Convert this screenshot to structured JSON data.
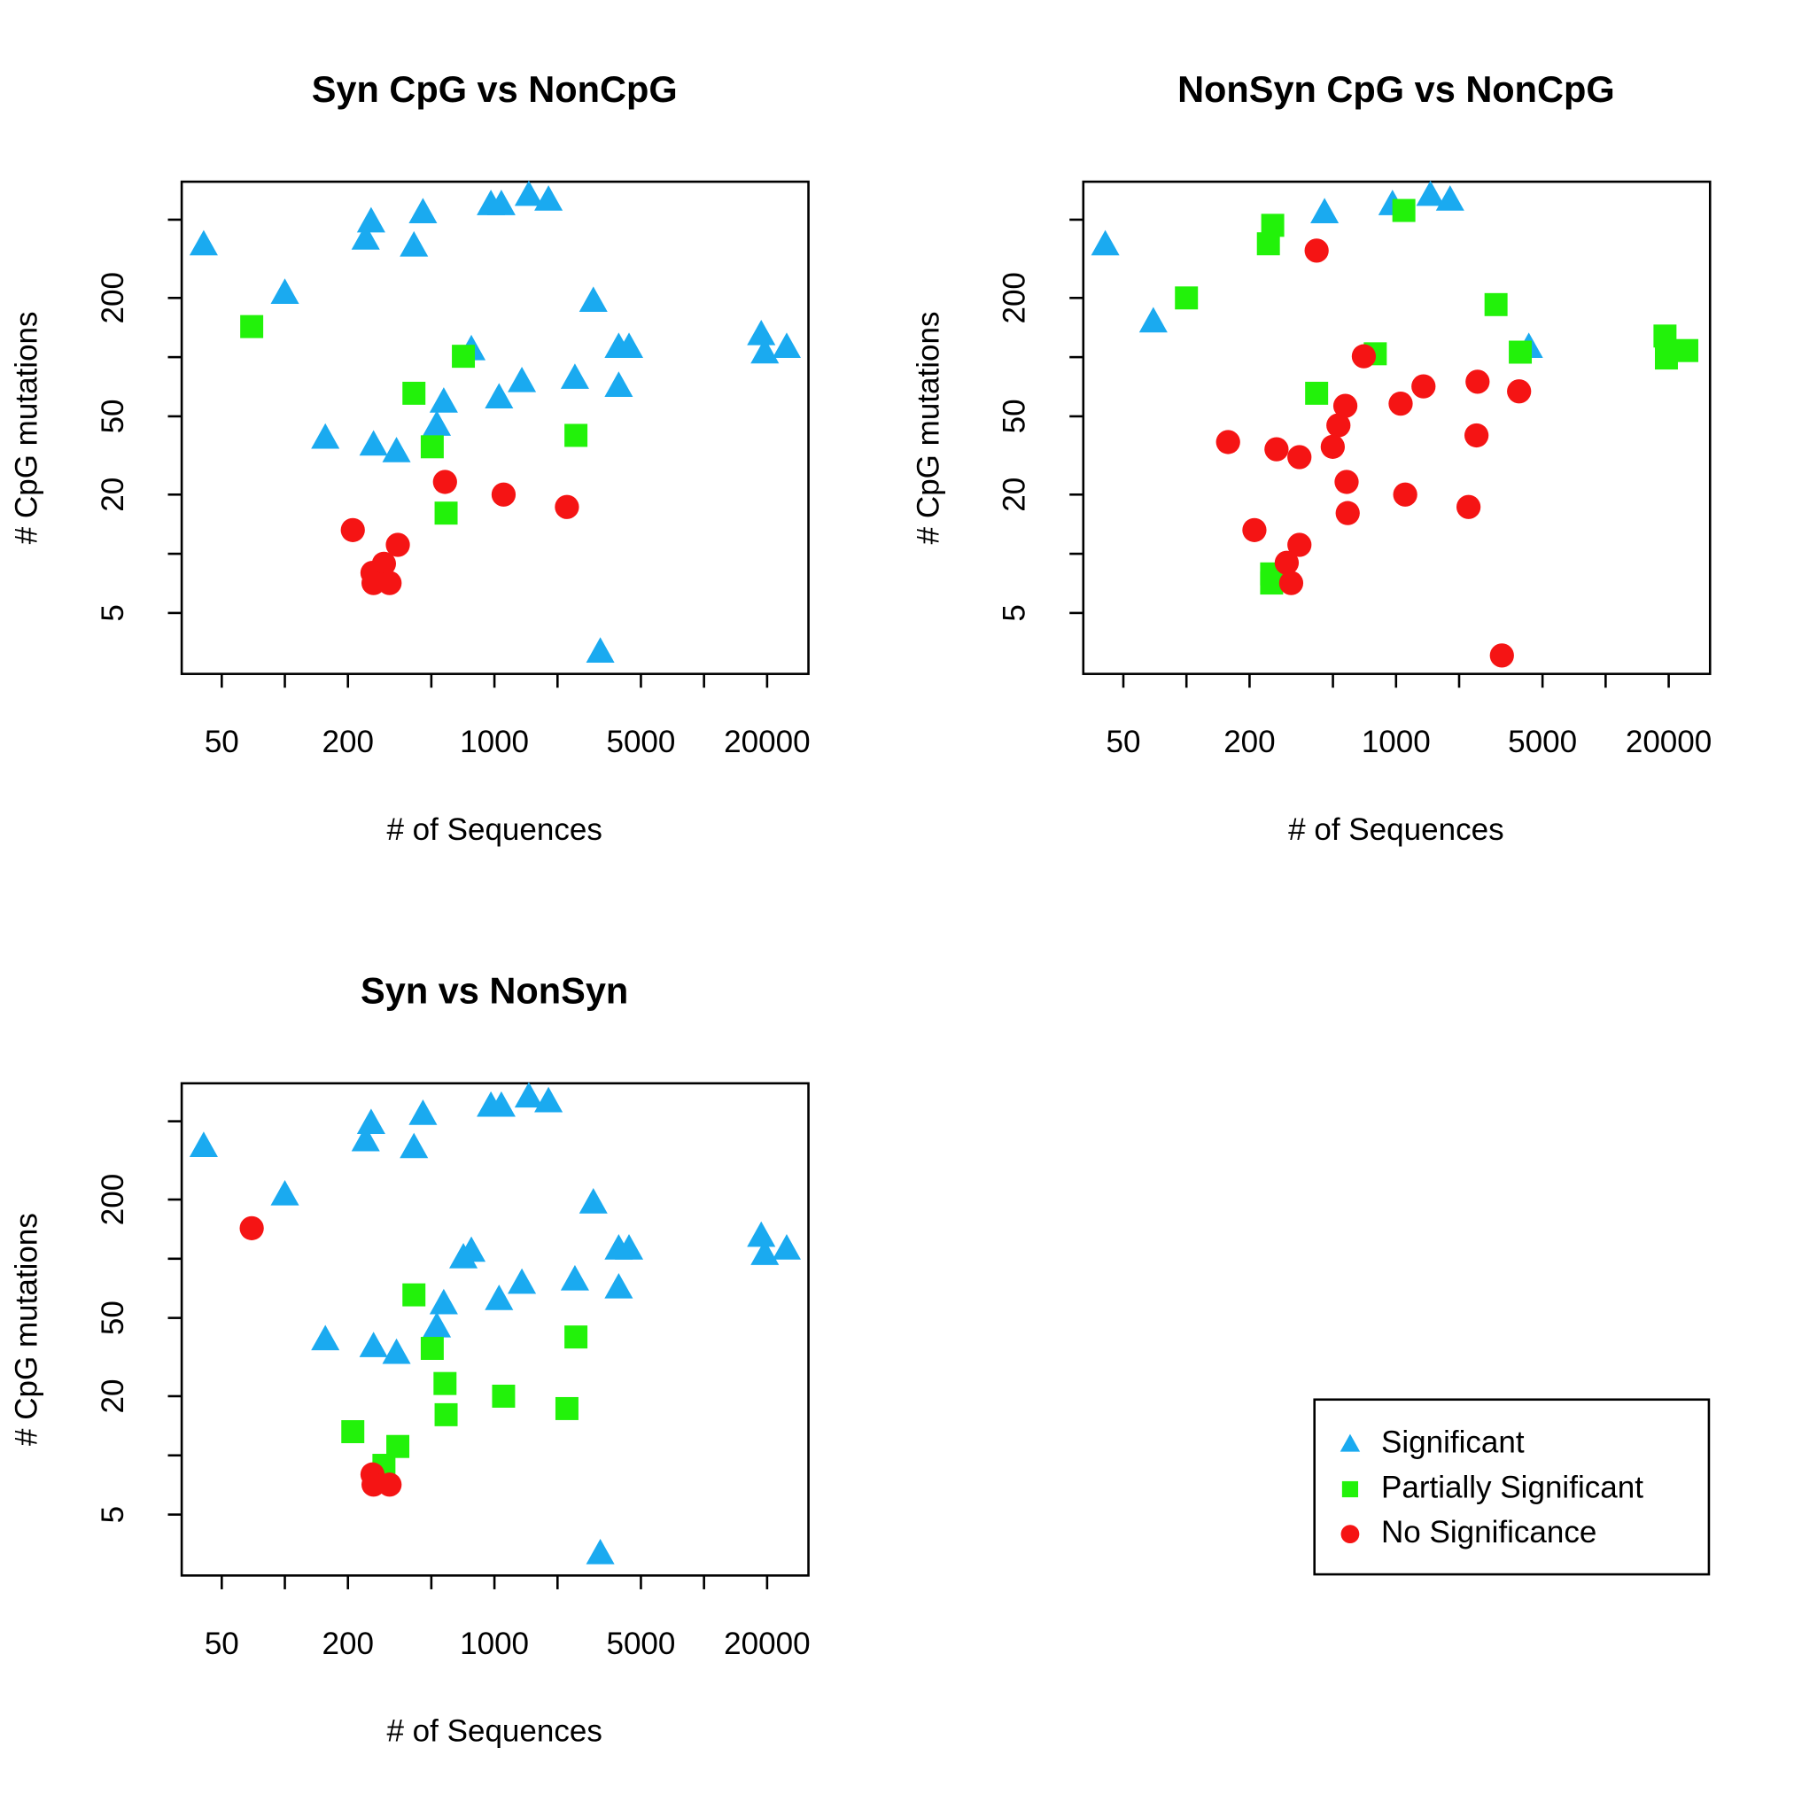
{
  "chart_data": [
    {
      "type": "scatter",
      "title": "Syn CpG vs NonCpG",
      "xlabel": "# of Sequences",
      "ylabel": "# CpG mutations",
      "xscale": "log",
      "yscale": "log",
      "xlim": [
        32.2,
        31500
      ],
      "ylim": [
        2.45,
        780
      ],
      "xticks": [
        50,
        200,
        1000,
        5000,
        20000
      ],
      "xminor_ticks": [
        100,
        500,
        2000,
        10000
      ],
      "yticks": [
        5,
        20,
        50,
        200
      ],
      "yminor_ticks": [
        10,
        100,
        500
      ],
      "legend": "bottom-right",
      "series": [
        {
          "name": "Significant",
          "color": "#1AAAF0",
          "marker": "triangle",
          "x": [
            41,
            100,
            258,
            243,
            456,
            413,
            962,
            1079,
            1459,
            1811,
            2965,
            776,
            3917,
            4387,
            18750,
            19500,
            24800,
            1352,
            2421,
            3917,
            573,
            1052,
            531,
            156,
            265,
            341,
            3200
          ],
          "values": [
            372,
            211,
            487,
            398,
            542,
            367,
            596,
            596,
            664,
            628,
            192,
            109,
            112,
            112,
            130,
            105,
            112,
            75,
            78,
            71,
            59,
            62,
            45,
            38.7,
            35.7,
            33,
            3.16
          ]
        },
        {
          "name": "Partially Significant",
          "color": "#22F20A",
          "marker": "square",
          "x": [
            69.5,
            413,
            711,
            505,
            2449,
            588
          ],
          "values": [
            143,
            65.5,
            101,
            35,
            40,
            16.1
          ]
        },
        {
          "name": "No Significance",
          "color": "#F51414",
          "marker": "circle",
          "x": [
            211,
            346,
            262,
            297,
            265,
            316,
            581,
            1106,
            2218
          ],
          "values": [
            13.2,
            11.1,
            8,
            8.9,
            7.1,
            7.1,
            23.2,
            20,
            17.3
          ]
        }
      ]
    },
    {
      "type": "scatter",
      "title": "NonSyn CpG vs NonCpG",
      "xlabel": "# of Sequences",
      "ylabel": "# CpG mutations",
      "xscale": "log",
      "yscale": "log",
      "xlim": [
        32.2,
        31500
      ],
      "ylim": [
        2.45,
        780
      ],
      "xticks": [
        50,
        200,
        1000,
        5000,
        20000
      ],
      "xminor_ticks": [
        100,
        500,
        2000,
        10000
      ],
      "yticks": [
        5,
        20,
        50,
        200
      ],
      "yminor_ticks": [
        10,
        100,
        500
      ],
      "series": [
        {
          "name": "Significant",
          "color": "#1AAAF0",
          "marker": "triangle",
          "x": [
            41,
            69.5,
            456,
            962,
            1459,
            1811,
            4300
          ],
          "values": [
            372,
            151,
            542,
            596,
            664,
            628,
            112
          ]
        },
        {
          "name": "Partially Significant",
          "color": "#22F20A",
          "marker": "square",
          "x": [
            246,
            258,
            100,
            1090,
            3000,
            796,
            418,
            3917,
            19200,
            19500,
            24400,
            255,
            255
          ],
          "values": [
            377,
            468,
            200,
            557,
            185,
            104,
            65.5,
            106,
            128,
            99,
            108,
            7.9,
            7.1
          ]
        },
        {
          "name": "No Significance",
          "color": "#F51414",
          "marker": "circle",
          "x": [
            418,
            702,
            2449,
            1352,
            3865,
            1052,
            573,
            531,
            499,
            158,
            269,
            346,
            2421,
            581,
            588,
            1106,
            2218,
            211,
            346,
            301,
            316,
            3200
          ],
          "values": [
            348,
            101,
            75,
            71,
            67,
            58,
            56.5,
            45,
            35,
            37,
            34,
            31,
            40,
            23.2,
            16.1,
            20,
            17.3,
            13.2,
            11.1,
            9,
            7.1,
            3.04
          ]
        }
      ]
    },
    {
      "type": "scatter",
      "title": "Syn vs NonSyn",
      "xlabel": "# of Sequences",
      "ylabel": "# CpG mutations",
      "xscale": "log",
      "yscale": "log",
      "xlim": [
        32.2,
        31500
      ],
      "ylim": [
        2.45,
        780
      ],
      "xticks": [
        50,
        200,
        1000,
        5000,
        20000
      ],
      "xminor_ticks": [
        100,
        500,
        2000,
        10000
      ],
      "yticks": [
        5,
        20,
        50,
        200
      ],
      "yminor_ticks": [
        10,
        100,
        500
      ],
      "series": [
        {
          "name": "Significant",
          "color": "#1AAAF0",
          "marker": "triangle",
          "x": [
            41,
            100,
            258,
            243,
            456,
            413,
            962,
            1079,
            1459,
            1811,
            2965,
            776,
            3917,
            4387,
            18750,
            19500,
            24800,
            1352,
            2421,
            3917,
            573,
            1052,
            531,
            156,
            265,
            341,
            3200,
            711
          ],
          "values": [
            372,
            211,
            487,
            398,
            542,
            367,
            596,
            596,
            664,
            628,
            192,
            109,
            112,
            112,
            130,
            105,
            112,
            75,
            78,
            71,
            59,
            62,
            45,
            38.7,
            35.7,
            33,
            3.16,
            101
          ]
        },
        {
          "name": "Partially Significant",
          "color": "#22F20A",
          "marker": "square",
          "x": [
            413,
            505,
            2449,
            581,
            1106,
            2218,
            588,
            211,
            346,
            297
          ],
          "values": [
            65.5,
            35,
            40,
            23.2,
            20,
            17.3,
            16.1,
            13.2,
            11.1,
            8.9
          ]
        },
        {
          "name": "No Significance",
          "color": "#F51414",
          "marker": "circle",
          "x": [
            69.5,
            262,
            265,
            316
          ],
          "values": [
            143,
            8,
            7.1,
            7.1
          ]
        }
      ]
    }
  ]
}
